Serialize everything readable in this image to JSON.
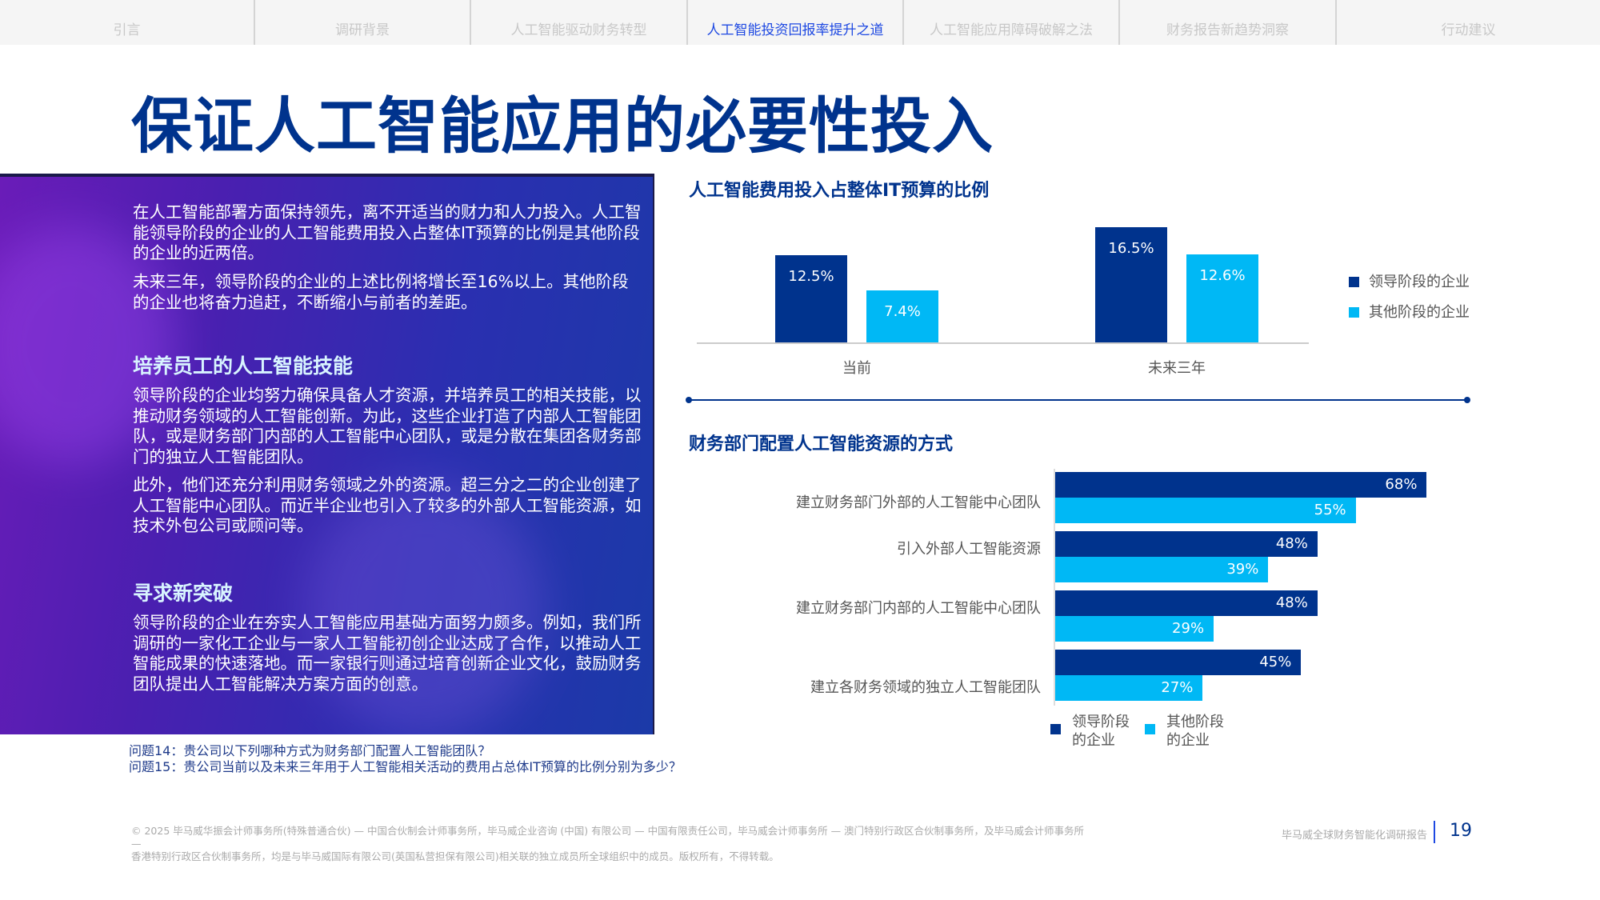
{
  "nav": {
    "tabs": [
      "引言",
      "调研背景",
      "人工智能驱动财务转型",
      "人工智能投资回报率提升之道",
      "人工智能应用障碍破解之法",
      "财务报告新趋势洞察",
      "行动建议"
    ],
    "active_index": 3
  },
  "page_title": "保证人工智能应用的必要性投入",
  "panel": {
    "p1": "在人工智能部署方面保持领先，离不开适当的财力和人力投入。人工智能领导阶段的企业的人工智能费用投入占整体IT预算的比例是其他阶段的企业的近两倍。",
    "p2": "未来三年，领导阶段的企业的上述比例将增长至16%以上。其他阶段的企业也将奋力追赶，不断缩小与前者的差距。",
    "h1": "培养员工的人工智能技能",
    "p3": "领导阶段的企业均努力确保具备人才资源，并培养员工的相关技能，以推动财务领域的人工智能创新。为此，这些企业打造了内部人工智能团队，或是财务部门内部的人工智能中心团队，或是分散在集团各财务部门的独立人工智能团队。",
    "p4": "此外，他们还充分利用财务领域之外的资源。超三分之二的企业创建了人工智能中心团队。而近半企业也引入了较多的外部人工智能资源，如技术外包公司或顾问等。",
    "h2": "寻求新突破",
    "p5": "领导阶段的企业在夯实人工智能应用基础方面努力颇多。例如，我们所调研的一家化工企业与一家人工智能初创企业达成了合作，以推动人工智能成果的快速落地。而一家银行则通过培育创新企业文化，鼓励财务团队提出人工智能解决方案方面的创意。"
  },
  "questions": {
    "q14": "问题14：贵公司以下列哪种方式为财务部门配置人工智能团队？",
    "q15": "问题15：贵公司当前以及未来三年用于人工智能相关活动的费用占总体IT预算的比例分别为多少？"
  },
  "colors": {
    "leader": "#00338D",
    "other": "#00B8F5"
  },
  "chart_data": [
    {
      "type": "bar",
      "title": "人工智能费用投入占整体IT预算的比例",
      "categories": [
        "当前",
        "未来三年"
      ],
      "series": [
        {
          "name": "领导阶段的企业",
          "values": [
            12.5,
            16.5
          ],
          "labels": [
            "12.5%",
            "16.5%"
          ]
        },
        {
          "name": "其他阶段的企业",
          "values": [
            7.4,
            12.6
          ],
          "labels": [
            "7.4%",
            "12.6%"
          ]
        }
      ],
      "unit": "%",
      "legend": "right"
    },
    {
      "type": "bar",
      "orientation": "horizontal",
      "title": "财务部门配置人工智能资源的方式",
      "categories": [
        "建立财务部门外部的人工智能中心团队",
        "引入外部人工智能资源",
        "建立财务部门内部的人工智能中心团队",
        "建立各财务领域的独立人工智能团队"
      ],
      "series": [
        {
          "name": "领导阶段\n的企业",
          "values": [
            68,
            48,
            48,
            45
          ],
          "labels": [
            "68%",
            "48%",
            "48%",
            "45%"
          ]
        },
        {
          "name": "其他阶段\n的企业",
          "values": [
            55,
            39,
            29,
            27
          ],
          "labels": [
            "55%",
            "39%",
            "29%",
            "27%"
          ]
        }
      ],
      "unit": "%",
      "legend": "bottom"
    }
  ],
  "footer": {
    "copyright_line1": "© 2025 毕马威华振会计师事务所(特殊普通合伙) — 中国合伙制会计师事务所，毕马威企业咨询 (中国) 有限公司 — 中国有限责任公司，毕马威会计师事务所 — 澳门特别行政区合伙制事务所，及毕马威会计师事务所 —",
    "copyright_line2": "香港特别行政区合伙制事务所，均是与毕马威国际有限公司(英国私营担保有限公司)相关联的独立成员所全球组织中的成员。版权所有，不得转载。",
    "report_name": "毕马威全球财务智能化调研报告",
    "page_number": "19"
  }
}
